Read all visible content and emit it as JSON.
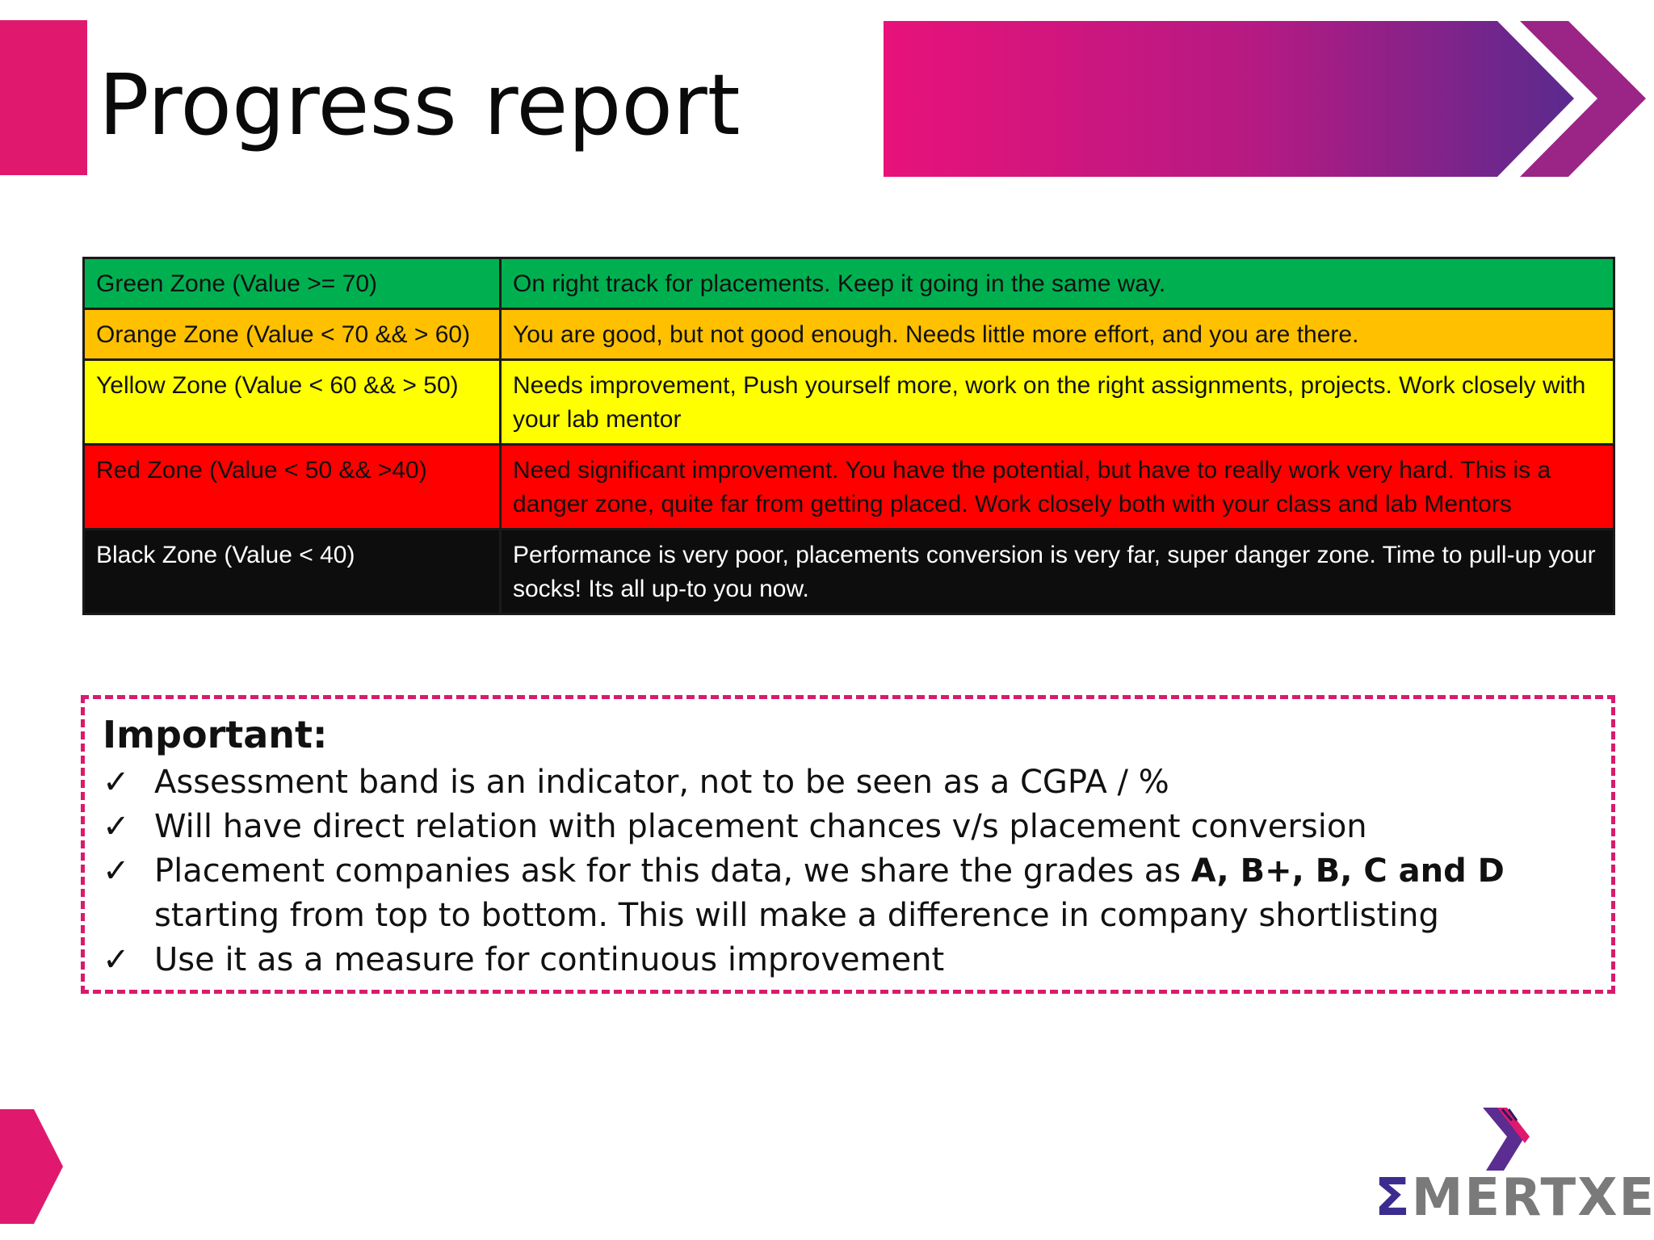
{
  "slide": {
    "title": "Progress report"
  },
  "zones": [
    {
      "name": "Green Zone (Value >= 70)",
      "description": "On right track for placements. Keep it going in the same way.",
      "bg": "#00b050",
      "fg": "#111111"
    },
    {
      "name": "Orange Zone (Value < 70 && > 60)",
      "description": "You are good, but not good enough.  Needs little more effort, and you are there.",
      "bg": "#ffc000",
      "fg": "#111111"
    },
    {
      "name": "Yellow Zone (Value  < 60 && > 50)",
      "description": "Needs improvement,  Push yourself more, work on the right assignments, projects. Work closely with your lab mentor",
      "bg": "#ffff00",
      "fg": "#111111"
    },
    {
      "name": "Red Zone (Value < 50 && >40)",
      "description": "Need significant improvement. You have the potential, but have to really work very hard. This is a danger zone, quite far from getting placed. Work closely both with your class and lab Mentors",
      "bg": "#ff0000",
      "fg": "#111111"
    },
    {
      "name": "Black Zone (Value < 40)",
      "description": "Performance is very poor, placements conversion is very far, super danger zone. Time to pull-up your socks! Its all up-to you now.",
      "bg": "#0d0d0d",
      "fg": "#ffffff"
    }
  ],
  "important": {
    "heading": "Important:",
    "check": "✓",
    "items": [
      {
        "text": "Assessment band is an indicator, not to be seen as a CGPA / %"
      },
      {
        "text": "Will have direct relation with placement chances v/s placement conversion"
      },
      {
        "text_before": "Placement companies ask for this data, we share the grades as ",
        "text_bold": "A, B+, B, C and D",
        "text_after": " starting from top to bottom. This will make a difference in company shortlisting"
      },
      {
        "text": "Use it as a measure for continuous improvement"
      }
    ]
  },
  "logo": {
    "sigma": "Σ",
    "rest": "MERTXE",
    "icon": "chevron-logo-icon"
  },
  "colors": {
    "accent_pink": "#e0196e",
    "accent_purple": "#3b2d8f",
    "dashed_border": "#d81b6e"
  }
}
